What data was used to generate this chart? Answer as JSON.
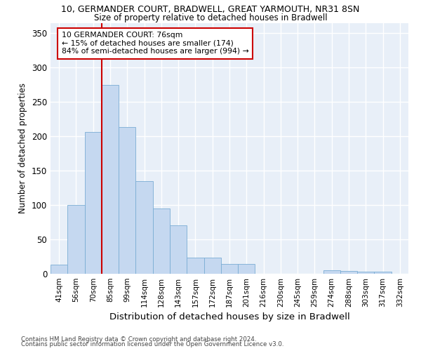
{
  "title1": "10, GERMANDER COURT, BRADWELL, GREAT YARMOUTH, NR31 8SN",
  "title2": "Size of property relative to detached houses in Bradwell",
  "xlabel": "Distribution of detached houses by size in Bradwell",
  "ylabel": "Number of detached properties",
  "categories": [
    "41sqm",
    "56sqm",
    "70sqm",
    "85sqm",
    "99sqm",
    "114sqm",
    "128sqm",
    "143sqm",
    "157sqm",
    "172sqm",
    "187sqm",
    "201sqm",
    "216sqm",
    "230sqm",
    "245sqm",
    "259sqm",
    "274sqm",
    "288sqm",
    "303sqm",
    "317sqm",
    "332sqm"
  ],
  "values": [
    13,
    100,
    206,
    275,
    213,
    135,
    95,
    70,
    23,
    23,
    14,
    14,
    0,
    0,
    0,
    0,
    5,
    4,
    3,
    3,
    0
  ],
  "bar_color": "#c5d8f0",
  "bar_edge_color": "#7aadd4",
  "annotation_label": "10 GERMANDER COURT: 76sqm",
  "pct_smaller": "15% of detached houses are smaller (174)",
  "pct_larger": "84% of semi-detached houses are larger (994)",
  "vline_color": "#cc0000",
  "ylim": [
    0,
    365
  ],
  "yticks": [
    0,
    50,
    100,
    150,
    200,
    250,
    300,
    350
  ],
  "bg_color": "#e8eff8",
  "footnote1": "Contains HM Land Registry data © Crown copyright and database right 2024.",
  "footnote2": "Contains public sector information licensed under the Open Government Licence v3.0."
}
